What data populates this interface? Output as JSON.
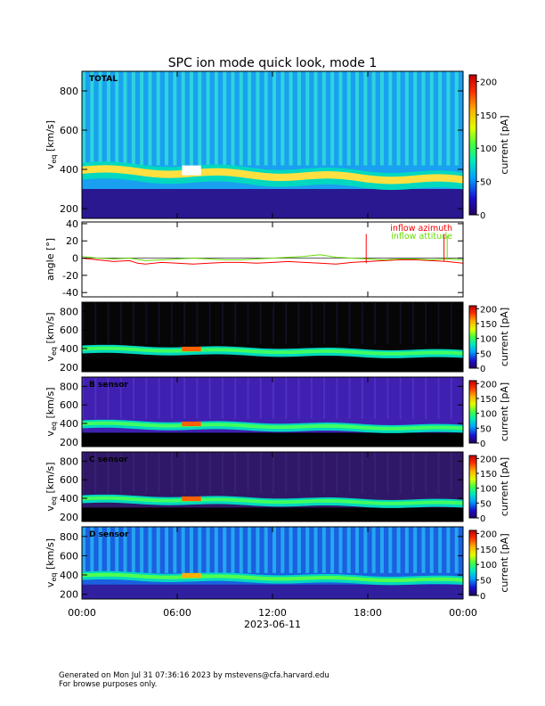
{
  "chart_data": {
    "type": "heatmap",
    "title": "SPC ion mode quick look, mode 1",
    "x": {
      "ticks": [
        "00:00",
        "06:00",
        "12:00",
        "18:00",
        "00:00"
      ],
      "tick_hours": [
        0,
        6,
        12,
        18,
        24
      ],
      "xlabel": "2023-06-11",
      "range_hours": [
        0,
        24
      ]
    },
    "panels": [
      {
        "type": "heatmap",
        "label": "TOTAL",
        "ylabel_base": "v",
        "ylabel_sub": "eq",
        "ylabel_unit": " [km/s]",
        "ylim": [
          150,
          900
        ],
        "yticks": [
          200,
          400,
          600,
          800
        ],
        "colorbar": {
          "label": "current [pA]",
          "range": [
            0,
            210
          ],
          "ticks": [
            0,
            50,
            100,
            150,
            200
          ]
        }
      },
      {
        "type": "line",
        "ylabel": "angle [°]",
        "ylim": [
          -45,
          42
        ],
        "yticks": [
          -40,
          -20,
          0,
          20,
          40
        ],
        "series": [
          {
            "name": "inflow azimuth",
            "color": "#ff0000",
            "x": [
              0,
              1,
              2,
              3,
              3.5,
              4,
              5,
              6,
              7,
              8,
              9,
              10,
              11,
              12,
              13,
              14,
              15,
              16,
              17,
              18,
              19,
              20,
              21,
              22,
              23,
              24
            ],
            "y": [
              0,
              -2,
              -4,
              -3,
              -6,
              -7,
              -5,
              -6,
              -7,
              -6,
              -5,
              -5,
              -6,
              -5,
              -4,
              -5,
              -6,
              -7,
              -5,
              -4,
              -3,
              -2,
              -2,
              -3,
              -4,
              -6
            ]
          },
          {
            "name": "inflow attitude",
            "color": "#66dd00",
            "x": [
              0,
              1,
              2,
              3,
              4,
              5,
              6,
              7,
              8,
              9,
              10,
              11,
              12,
              13,
              14,
              15,
              16,
              17,
              18,
              19,
              20,
              21,
              22,
              23,
              24
            ],
            "y": [
              2,
              0,
              -1,
              0,
              -3,
              -2,
              -1,
              0,
              -1,
              -2,
              -2,
              -1,
              0,
              1,
              2,
              4,
              1,
              0,
              -1,
              -2,
              -1,
              -1,
              -2,
              -1,
              -2
            ]
          }
        ]
      },
      {
        "type": "heatmap",
        "label": "",
        "ylabel_base": "v",
        "ylabel_sub": "eq",
        "ylabel_unit": " [km/s]",
        "ylim": [
          150,
          900
        ],
        "yticks": [
          200,
          400,
          600,
          800
        ],
        "colorbar": {
          "label": "current [pA]",
          "range": [
            0,
            210
          ],
          "ticks": [
            0,
            50,
            100,
            150,
            200
          ]
        }
      },
      {
        "type": "heatmap",
        "label": "B sensor",
        "ylabel_base": "v",
        "ylabel_sub": "eq",
        "ylabel_unit": " [km/s]",
        "ylim": [
          150,
          900
        ],
        "yticks": [
          200,
          400,
          600,
          800
        ],
        "colorbar": {
          "label": "current [pA]",
          "range": [
            0,
            210
          ],
          "ticks": [
            0,
            50,
            100,
            150,
            200
          ]
        }
      },
      {
        "type": "heatmap",
        "label": "C sensor",
        "ylabel_base": "v",
        "ylabel_sub": "eq",
        "ylabel_unit": " [km/s]",
        "ylim": [
          150,
          900
        ],
        "yticks": [
          200,
          400,
          600,
          800
        ],
        "colorbar": {
          "label": "current [pA]",
          "range": [
            0,
            210
          ],
          "ticks": [
            0,
            50,
            100,
            150,
            200
          ]
        }
      },
      {
        "type": "heatmap",
        "label": "D sensor",
        "ylabel_base": "v",
        "ylabel_sub": "eq",
        "ylabel_unit": " [km/s]",
        "ylim": [
          150,
          900
        ],
        "yticks": [
          200,
          400,
          600,
          800
        ],
        "colorbar": {
          "label": "current [pA]",
          "range": [
            0,
            210
          ],
          "ticks": [
            0,
            50,
            100,
            150,
            200
          ]
        }
      }
    ]
  },
  "footer": {
    "line1": "Generated on Mon Jul 31 07:36:16 2023 by mstevens@cfa.harvard.edu",
    "line2": "For browse purposes only."
  }
}
